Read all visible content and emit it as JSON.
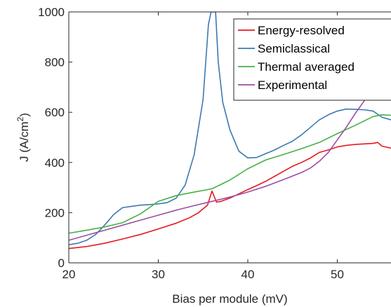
{
  "chart_data": {
    "type": "line",
    "title": "",
    "xlabel": "Bias per module (mV)",
    "ylabel": "J (A/cm",
    "ylabel_superscript": "2",
    "ylabel_suffix": ")",
    "xlim": [
      20,
      56
    ],
    "ylim": [
      0,
      1000
    ],
    "xticks": [
      20,
      30,
      40,
      50
    ],
    "yticks": [
      0,
      200,
      400,
      600,
      800,
      1000
    ],
    "grid": false,
    "legend_position": "top-right",
    "series": [
      {
        "name": "Energy-resolved",
        "color": "#e6191f",
        "points": [
          [
            20,
            57
          ],
          [
            22,
            65
          ],
          [
            24,
            78
          ],
          [
            26,
            95
          ],
          [
            28,
            113
          ],
          [
            30,
            135
          ],
          [
            32,
            158
          ],
          [
            33.5,
            180
          ],
          [
            34.5,
            200
          ],
          [
            35.5,
            230
          ],
          [
            36,
            286
          ],
          [
            36.5,
            242
          ],
          [
            37,
            245
          ],
          [
            38,
            258
          ],
          [
            39,
            275
          ],
          [
            40,
            292
          ],
          [
            41,
            308
          ],
          [
            42,
            325
          ],
          [
            43,
            345
          ],
          [
            44,
            365
          ],
          [
            45,
            385
          ],
          [
            46,
            400
          ],
          [
            47,
            418
          ],
          [
            48,
            440
          ],
          [
            49,
            450
          ],
          [
            50,
            462
          ],
          [
            51,
            468
          ],
          [
            52,
            472
          ],
          [
            53,
            474
          ],
          [
            54,
            476
          ],
          [
            54.5,
            480
          ],
          [
            55,
            465
          ],
          [
            56,
            457
          ]
        ]
      },
      {
        "name": "Semiclassical",
        "color": "#3c79b1",
        "points": [
          [
            20,
            72
          ],
          [
            21,
            78
          ],
          [
            22,
            90
          ],
          [
            23,
            113
          ],
          [
            24,
            150
          ],
          [
            25,
            192
          ],
          [
            26,
            220
          ],
          [
            27,
            225
          ],
          [
            28,
            230
          ],
          [
            29,
            232
          ],
          [
            30,
            235
          ],
          [
            31,
            240
          ],
          [
            32,
            258
          ],
          [
            33,
            310
          ],
          [
            34,
            430
          ],
          [
            35,
            650
          ],
          [
            35.6,
            950
          ],
          [
            35.9,
            1000
          ],
          [
            36.4,
            1000
          ],
          [
            36.7,
            800
          ],
          [
            37.2,
            640
          ],
          [
            38,
            530
          ],
          [
            39,
            445
          ],
          [
            40,
            418
          ],
          [
            41,
            420
          ],
          [
            42,
            435
          ],
          [
            43,
            450
          ],
          [
            44,
            468
          ],
          [
            45,
            485
          ],
          [
            46,
            510
          ],
          [
            47,
            540
          ],
          [
            48,
            570
          ],
          [
            49,
            590
          ],
          [
            50,
            605
          ],
          [
            51,
            613
          ],
          [
            52,
            612
          ],
          [
            53,
            610
          ],
          [
            54,
            605
          ],
          [
            55,
            580
          ],
          [
            56,
            570
          ]
        ]
      },
      {
        "name": "Thermal averaged",
        "color": "#45b047",
        "points": [
          [
            20,
            118
          ],
          [
            22,
            130
          ],
          [
            24,
            143
          ],
          [
            26,
            160
          ],
          [
            28,
            195
          ],
          [
            29,
            220
          ],
          [
            30,
            245
          ],
          [
            32,
            268
          ],
          [
            34,
            282
          ],
          [
            36,
            295
          ],
          [
            38,
            330
          ],
          [
            40,
            375
          ],
          [
            42,
            410
          ],
          [
            44,
            432
          ],
          [
            46,
            455
          ],
          [
            48,
            480
          ],
          [
            50,
            515
          ],
          [
            52,
            548
          ],
          [
            54,
            583
          ],
          [
            55,
            590
          ],
          [
            56,
            588
          ]
        ]
      },
      {
        "name": "Experimental",
        "color": "#9b4ea4",
        "points": [
          [
            20,
            90
          ],
          [
            22,
            110
          ],
          [
            24,
            130
          ],
          [
            26,
            150
          ],
          [
            28,
            170
          ],
          [
            30,
            190
          ],
          [
            32,
            210
          ],
          [
            34,
            228
          ],
          [
            36,
            245
          ],
          [
            38,
            262
          ],
          [
            40,
            282
          ],
          [
            42,
            305
          ],
          [
            44,
            332
          ],
          [
            46,
            360
          ],
          [
            47,
            378
          ],
          [
            48,
            405
          ],
          [
            49,
            440
          ],
          [
            50,
            490
          ],
          [
            51,
            540
          ],
          [
            52,
            595
          ],
          [
            53,
            645
          ],
          [
            54,
            695
          ],
          [
            55,
            740
          ],
          [
            56,
            770
          ]
        ]
      }
    ]
  }
}
